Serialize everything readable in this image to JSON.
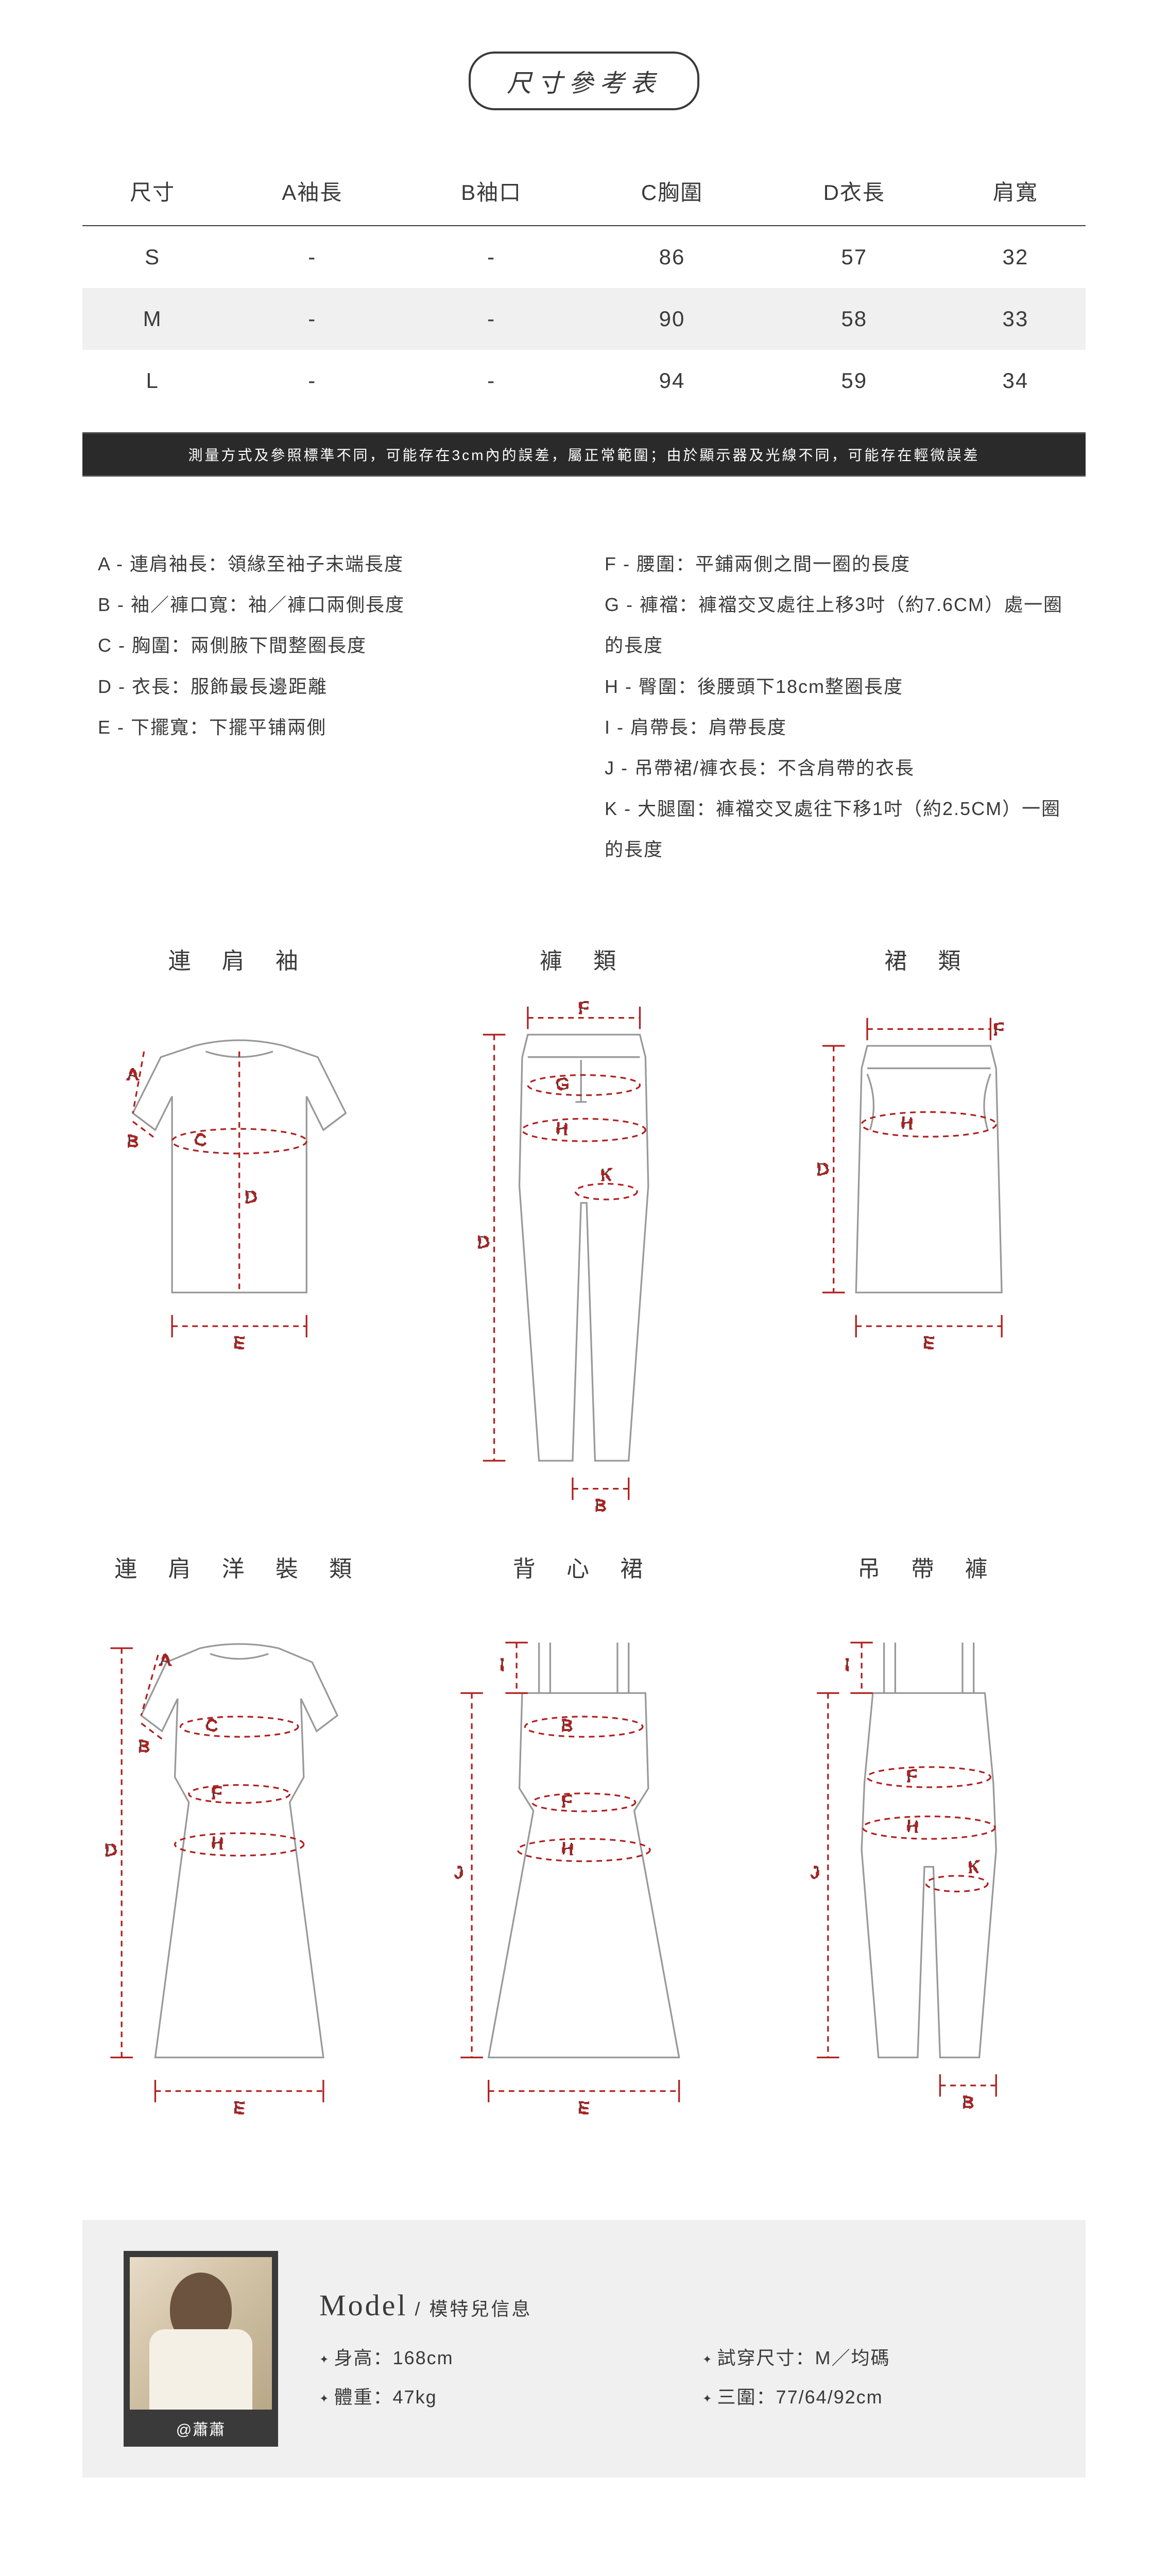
{
  "title": "尺寸參考表",
  "size_table": {
    "columns": [
      "尺寸",
      "A袖長",
      "B袖口",
      "C胸圍",
      "D衣長",
      "肩寬"
    ],
    "rows": [
      [
        "S",
        "-",
        "-",
        "86",
        "57",
        "32"
      ],
      [
        "M",
        "-",
        "-",
        "90",
        "58",
        "33"
      ],
      [
        "L",
        "-",
        "-",
        "94",
        "59",
        "34"
      ]
    ],
    "alt_row_index": 1,
    "header_border": "#3a3a3a",
    "alt_bg": "#f0f0f0",
    "fontsize": 42
  },
  "note_bar": {
    "text": "測量方式及參照標準不同，可能存在3cm內的誤差，屬正常範圍；由於顯示器及光線不同，可能存在輕微誤差",
    "bg": "#2a2a2a",
    "color": "#ffffff",
    "fontsize": 28
  },
  "legend": {
    "left": [
      "A - 連肩袖長：領緣至袖子末端長度",
      "B - 袖／褲口寬：袖／褲口兩側長度",
      "C - 胸圍：兩側腋下間整圈長度",
      "D - 衣長：服飾最長邊距離",
      "E - 下擺寬：下擺平铺兩側"
    ],
    "right": [
      "F - 腰圍：平鋪兩側之間一圈的長度",
      "G - 褲襠：褲襠交叉處往上移3吋（約7.6CM）處一圈的長度",
      "H - 臀圍：後腰頭下18cm整圈長度",
      "I - 肩帶長：肩帶長度",
      "J - 吊帶裙/褲衣長：不含肩帶的衣長",
      "K - 大腿圍：褲襠交叉處往下移1吋（約2.5CM）一圈的長度"
    ],
    "fontsize": 36
  },
  "diagrams": {
    "titles": [
      "連 肩 袖",
      "褲 類",
      "裙 類",
      "連 肩 洋 裝 類",
      "背 心 裙",
      "吊 帶 褲"
    ],
    "title_fontsize": 44,
    "stroke_color": "#999999",
    "dash_color": "#b02020",
    "label_color": "#3a3a3a",
    "label_fontsize": 30
  },
  "model": {
    "heading": "Model",
    "heading_sub": " / 模特兒信息",
    "handle": "@蕭蕭",
    "stats": [
      "身高：168cm",
      "試穿尺寸：M／均碼",
      "體重：47kg",
      "三圍：77/64/92cm"
    ],
    "bg": "#f0f0f0",
    "heading_fontsize": 58,
    "stat_fontsize": 36
  },
  "colors": {
    "text": "#3a3a3a",
    "bg": "#ffffff"
  }
}
